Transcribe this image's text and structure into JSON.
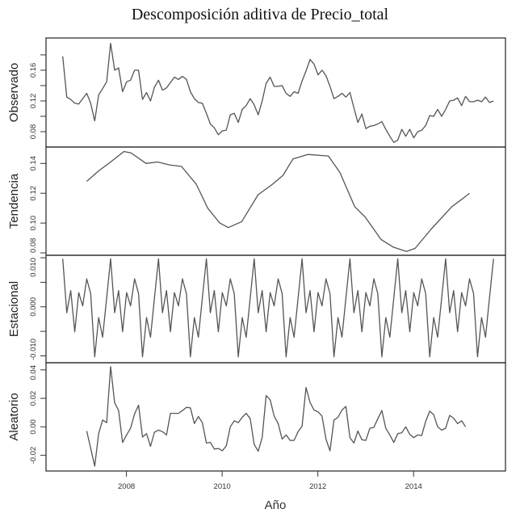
{
  "chart_data": {
    "type": "line",
    "title": "Descomposición aditiva de Precio_total",
    "xlabel": "Año",
    "xlim": [
      2006.32,
      2015.92
    ],
    "xticks": [
      2008,
      2010,
      2012,
      2014
    ],
    "xtick_labels": [
      "2008",
      "2010",
      "2012",
      "2014"
    ],
    "grid": false,
    "panels": [
      {
        "name": "Observado",
        "ylim": [
          0.06,
          0.202
        ],
        "ticks": [
          0.08,
          0.1,
          0.12,
          0.14,
          0.16,
          0.18
        ],
        "tick_labels": [
          {
            "v": 0.08,
            "t": "0.08"
          },
          {
            "v": 0.12,
            "t": "0.12"
          },
          {
            "v": 0.16,
            "t": "0.16"
          }
        ],
        "start": 2006.67,
        "frequency": 12,
        "values": [
          0.178,
          0.125,
          0.122,
          0.117,
          0.116,
          0.123,
          0.13,
          0.117,
          0.094,
          0.128,
          0.136,
          0.145,
          0.195,
          0.16,
          0.163,
          0.132,
          0.145,
          0.147,
          0.16,
          0.16,
          0.122,
          0.131,
          0.12,
          0.138,
          0.147,
          0.134,
          0.137,
          0.144,
          0.151,
          0.148,
          0.152,
          0.148,
          0.132,
          0.123,
          0.118,
          0.117,
          0.104,
          0.09,
          0.085,
          0.076,
          0.081,
          0.082,
          0.102,
          0.104,
          0.092,
          0.109,
          0.114,
          0.123,
          0.115,
          0.102,
          0.12,
          0.143,
          0.151,
          0.139,
          0.139,
          0.14,
          0.13,
          0.126,
          0.132,
          0.13,
          0.146,
          0.159,
          0.174,
          0.168,
          0.154,
          0.16,
          0.153,
          0.139,
          0.123,
          0.126,
          0.13,
          0.125,
          0.131,
          0.111,
          0.092,
          0.103,
          0.084,
          0.087,
          0.088,
          0.09,
          0.093,
          0.083,
          0.074,
          0.066,
          0.069,
          0.083,
          0.074,
          0.083,
          0.072,
          0.08,
          0.082,
          0.088,
          0.101,
          0.1,
          0.109,
          0.1,
          0.109,
          0.12,
          0.121,
          0.124,
          0.114,
          0.126,
          0.119,
          0.119,
          0.121,
          0.119,
          0.125,
          0.118,
          0.12
        ]
      },
      {
        "name": "Tendencia",
        "ylim": [
          0.0784,
          0.151
        ],
        "ticks": [
          0.08,
          0.1,
          0.12,
          0.14
        ],
        "tick_labels": [
          {
            "v": 0.08,
            "t": "0.08"
          },
          {
            "v": 0.1,
            "t": "0.10"
          },
          {
            "v": 0.12,
            "t": "0.12"
          },
          {
            "v": 0.14,
            "t": "0.14"
          }
        ],
        "points": [
          [
            2007.17,
            0.128
          ],
          [
            2007.42,
            0.135
          ],
          [
            2007.67,
            0.141
          ],
          [
            2007.95,
            0.148
          ],
          [
            2008.1,
            0.147
          ],
          [
            2008.41,
            0.14
          ],
          [
            2008.65,
            0.141
          ],
          [
            2008.9,
            0.139
          ],
          [
            2009.15,
            0.138
          ],
          [
            2009.46,
            0.126
          ],
          [
            2009.7,
            0.11
          ],
          [
            2009.95,
            0.1
          ],
          [
            2010.13,
            0.097
          ],
          [
            2010.41,
            0.101
          ],
          [
            2010.75,
            0.119
          ],
          [
            2011.05,
            0.126
          ],
          [
            2011.27,
            0.132
          ],
          [
            2011.48,
            0.143
          ],
          [
            2011.79,
            0.146
          ],
          [
            2012.22,
            0.145
          ],
          [
            2012.46,
            0.134
          ],
          [
            2012.77,
            0.111
          ],
          [
            2012.99,
            0.104
          ],
          [
            2013.32,
            0.089
          ],
          [
            2013.57,
            0.084
          ],
          [
            2013.85,
            0.081
          ],
          [
            2014.03,
            0.083
          ],
          [
            2014.37,
            0.096
          ],
          [
            2014.8,
            0.111
          ],
          [
            2015.05,
            0.117
          ],
          [
            2015.17,
            0.12
          ]
        ]
      },
      {
        "name": "Estacional",
        "ylim": [
          -0.0114,
          0.0105
        ],
        "ticks": [
          -0.01,
          -0.005,
          0.0,
          0.005,
          0.01
        ],
        "tick_labels": [
          {
            "v": -0.01,
            "t": "-0.010"
          },
          {
            "v": 0.0,
            "t": "0.000"
          },
          {
            "v": 0.01,
            "t": "0.010"
          }
        ],
        "start": 2006.67,
        "frequency": 12,
        "count": 109,
        "pattern": [
          0.0098,
          -0.0012,
          0.0033,
          -0.0051,
          0.0029,
          0.0002,
          0.0057,
          0.0027,
          -0.0102,
          -0.0022,
          -0.0062,
          0.0018
        ]
      },
      {
        "name": "Aleatorio",
        "ylim": [
          -0.031,
          0.045
        ],
        "ticks": [
          -0.02,
          0.0,
          0.02,
          0.04
        ],
        "tick_labels": [
          {
            "v": -0.02,
            "t": "-0.02"
          },
          {
            "v": 0.0,
            "t": "0.00"
          },
          {
            "v": 0.02,
            "t": "0.02"
          },
          {
            "v": 0.04,
            "t": "0.04"
          }
        ],
        "start": 2007.17,
        "frequency": 12,
        "values": [
          -0.0029,
          -0.015,
          -0.0276,
          -0.0047,
          0.0048,
          0.0029,
          0.0423,
          0.0168,
          0.0114,
          -0.011,
          -0.0057,
          -0.001,
          0.0091,
          0.0152,
          -0.0072,
          -0.0048,
          -0.0137,
          -0.0038,
          -0.0023,
          -0.0034,
          -0.0057,
          0.0095,
          0.0095,
          0.0095,
          0.0114,
          0.0137,
          0.0133,
          0.0023,
          0.0072,
          0.0029,
          -0.0114,
          -0.0109,
          -0.0156,
          -0.0152,
          -0.0168,
          -0.0133,
          0.0,
          0.0042,
          0.0029,
          0.0067,
          0.0095,
          0.0057,
          -0.0124,
          -0.0171,
          -0.0076,
          0.0219,
          0.019,
          0.0076,
          0.0023,
          -0.0086,
          -0.0057,
          -0.0095,
          -0.0095,
          -0.0034,
          0.0004,
          0.0276,
          0.0171,
          0.0118,
          0.0105,
          0.0076,
          -0.0086,
          -0.0168,
          0.0048,
          0.0067,
          0.0118,
          0.0143,
          -0.0076,
          -0.0114,
          -0.0029,
          -0.0091,
          -0.0095,
          -0.001,
          -0.0004,
          0.0057,
          0.0114,
          -0.001,
          -0.0057,
          -0.011,
          -0.0048,
          -0.0042,
          0.0,
          -0.0053,
          -0.0076,
          -0.0057,
          -0.0061,
          0.0038,
          0.011,
          0.0086,
          0.0,
          -0.0023,
          -0.001,
          0.008,
          0.0061,
          0.0023,
          0.0042,
          0.0
        ]
      }
    ],
    "line_color": "#555555"
  }
}
